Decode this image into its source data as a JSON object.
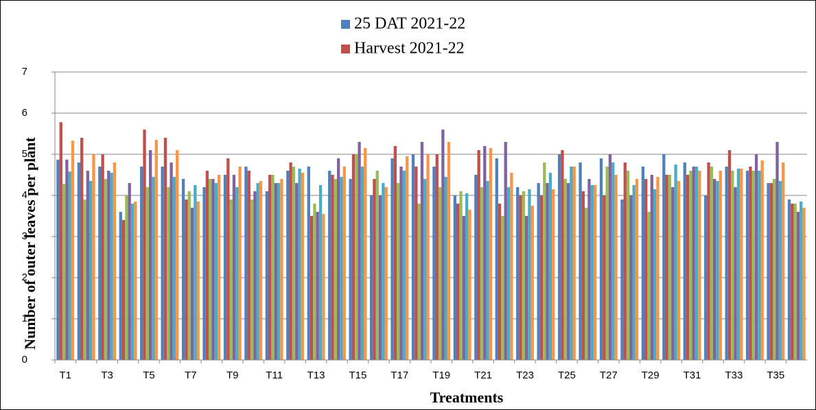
{
  "chart_data": {
    "type": "bar",
    "x_label": "Treatments",
    "y_label": "Number of outer leaves per plant",
    "categories": [
      "T1",
      null,
      "T3",
      null,
      "T5",
      null,
      "T7",
      null,
      "T9",
      null,
      "T11",
      null,
      "T13",
      null,
      "T15",
      null,
      "T17",
      null,
      "T19",
      null,
      "T21",
      null,
      "T23",
      null,
      "T25",
      null,
      "T27",
      null,
      "T29",
      null,
      "T31",
      null,
      "T33",
      null,
      "T35",
      null
    ],
    "series": [
      {
        "name": "25 DAT 2021-22",
        "color": "#4f81bd",
        "values": [
          4.87,
          4.8,
          4.7,
          3.6,
          4.7,
          4.7,
          4.4,
          4.2,
          4.5,
          4.7,
          4.1,
          4.6,
          4.7,
          4.6,
          4.4,
          4.0,
          4.9,
          5.0,
          4.7,
          4.0,
          4.5,
          4.9,
          4.2,
          4.3,
          5.0,
          4.8,
          4.9,
          3.9,
          4.7,
          5.0,
          4.8,
          4.0,
          4.7,
          4.6,
          4.3,
          3.9
        ]
      },
      {
        "name": "Harvest 2021-22",
        "color": "#c0504d",
        "values": [
          5.78,
          5.4,
          5.0,
          3.4,
          5.6,
          5.4,
          3.9,
          4.6,
          4.9,
          4.6,
          4.5,
          4.8,
          3.5,
          4.5,
          5.0,
          4.4,
          5.2,
          4.7,
          5.0,
          3.8,
          5.1,
          3.8,
          4.0,
          4.0,
          5.1,
          4.1,
          4.0,
          4.8,
          4.4,
          4.5,
          4.5,
          4.8,
          5.1,
          4.7,
          4.3,
          3.8
        ]
      },
      {
        "color": "#9bbb59",
        "values": [
          4.28,
          3.9,
          4.4,
          4.0,
          4.2,
          4.2,
          4.1,
          4.4,
          3.9,
          3.9,
          4.5,
          4.7,
          3.8,
          4.4,
          5.0,
          4.6,
          4.3,
          3.8,
          4.2,
          4.1,
          4.2,
          3.5,
          4.1,
          4.8,
          4.4,
          3.7,
          4.7,
          4.6,
          3.6,
          4.5,
          4.6,
          4.7,
          4.6,
          4.6,
          4.4,
          3.8
        ]
      },
      {
        "color": "#8064a2",
        "values": [
          4.87,
          4.6,
          4.6,
          4.3,
          5.1,
          4.8,
          3.7,
          4.4,
          4.5,
          4.1,
          4.3,
          4.3,
          3.6,
          4.9,
          5.3,
          4.0,
          4.7,
          5.3,
          5.6,
          3.5,
          5.2,
          5.3,
          3.5,
          4.3,
          4.3,
          4.4,
          5.0,
          4.0,
          4.5,
          4.2,
          4.7,
          4.4,
          4.2,
          5.0,
          5.3,
          3.6
        ]
      },
      {
        "color": "#4bacc6",
        "values": [
          4.58,
          4.35,
          4.55,
          3.8,
          4.45,
          4.45,
          4.25,
          4.3,
          4.2,
          4.3,
          4.3,
          4.65,
          4.25,
          4.45,
          4.7,
          4.3,
          4.6,
          4.4,
          4.45,
          4.05,
          4.35,
          4.2,
          4.15,
          4.55,
          4.7,
          4.25,
          4.8,
          4.25,
          4.15,
          4.75,
          4.7,
          4.35,
          4.65,
          4.6,
          4.35,
          3.85
        ]
      },
      {
        "color": "#f79646",
        "values": [
          5.33,
          5.0,
          4.8,
          3.85,
          5.35,
          5.1,
          3.85,
          4.5,
          4.7,
          4.35,
          4.4,
          4.55,
          3.55,
          4.7,
          5.15,
          4.2,
          4.95,
          5.0,
          5.3,
          3.65,
          5.15,
          4.55,
          3.75,
          4.15,
          4.7,
          4.25,
          4.5,
          4.4,
          4.45,
          4.35,
          4.6,
          4.6,
          4.65,
          4.85,
          4.8,
          3.7
        ]
      }
    ],
    "ylim": [
      0,
      7
    ],
    "yticks": [
      0,
      1,
      2,
      3,
      4,
      5,
      6,
      7
    ],
    "grid": true
  }
}
